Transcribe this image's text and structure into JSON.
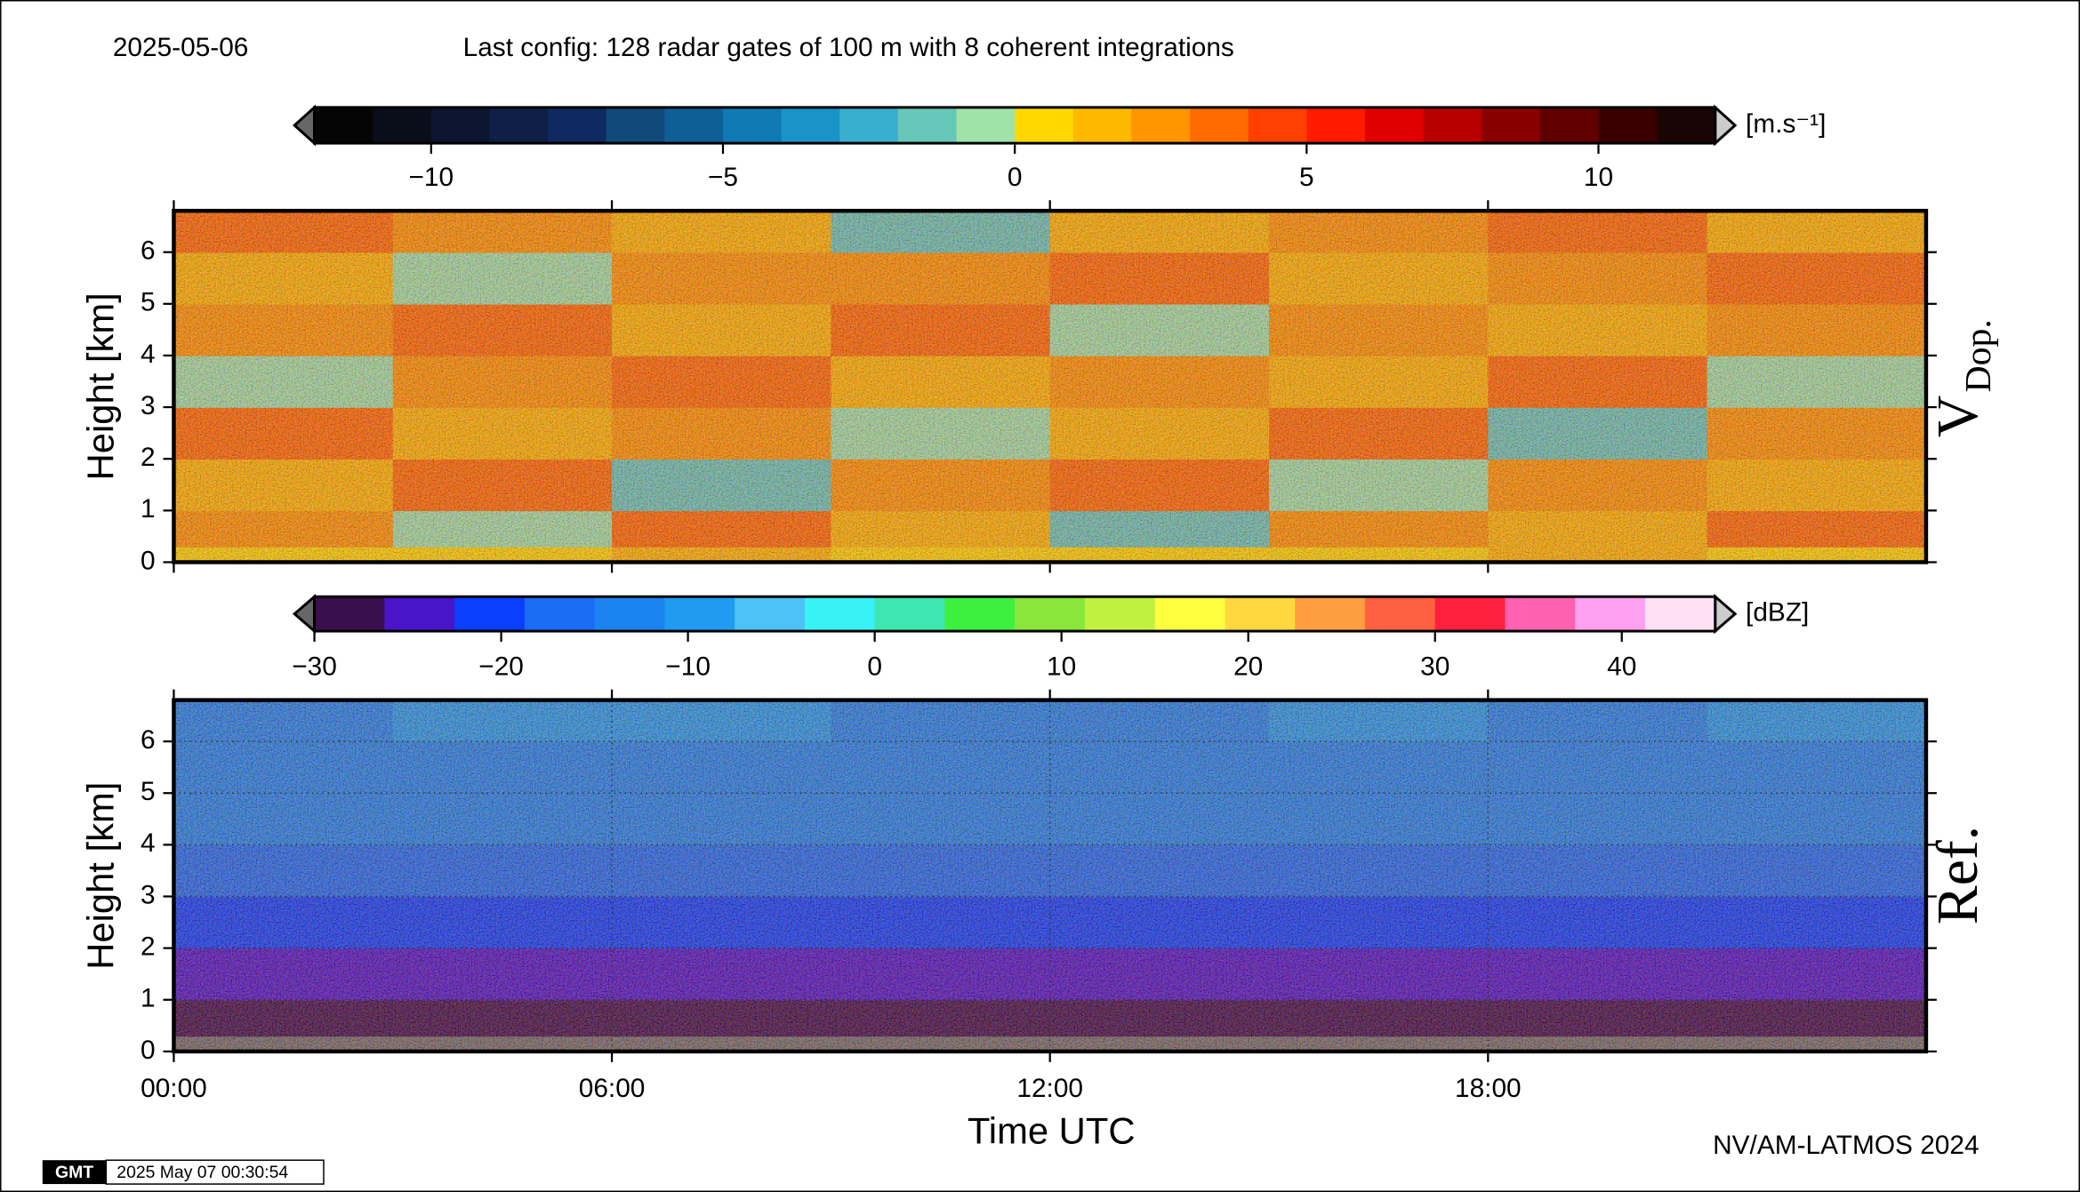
{
  "date": "2025-05-06",
  "config": "Last config: 128 radar gates of 100 m with 8 coherent integrations",
  "credit": "NV/AM-LATMOS 2024",
  "logo": "GMT",
  "timestamp": "2025 May 07 00:30:54",
  "chart_data": [
    {
      "type": "heatmap",
      "ylabel": "Height [km]",
      "panel_label": "V",
      "panel_label_sub": "Dop.",
      "grid": false,
      "xlim": [
        0,
        24
      ],
      "ylim": [
        0,
        6.8
      ],
      "yticks": [
        0,
        1,
        2,
        3,
        4,
        5,
        6
      ],
      "xedges": [
        0,
        3,
        6,
        9,
        12,
        15,
        18,
        21,
        24
      ],
      "yedges": [
        0,
        0.3,
        1,
        2,
        3,
        4,
        5,
        6,
        6.8
      ],
      "values": [
        [
          0,
          0,
          1,
          0,
          0,
          0,
          1,
          0
        ],
        [
          2,
          -1,
          3,
          1,
          -2,
          2,
          1,
          3
        ],
        [
          1,
          3,
          -2,
          2,
          3,
          -1,
          2,
          1
        ],
        [
          3,
          1,
          2,
          -1,
          1,
          3,
          -2,
          2
        ],
        [
          -1,
          2,
          3,
          1,
          2,
          1,
          3,
          -1
        ],
        [
          2,
          3,
          1,
          3,
          -1,
          2,
          1,
          2
        ],
        [
          1,
          -1,
          2,
          2,
          3,
          1,
          2,
          3
        ],
        [
          3,
          2,
          1,
          -2,
          1,
          2,
          3,
          1
        ]
      ],
      "colorbar": {
        "unit": "[m.s⁻¹]",
        "lim": [
          -12,
          12
        ],
        "ticks": [
          {
            "value": -10,
            "label": "−10"
          },
          {
            "value": -5,
            "label": "−5"
          },
          0,
          5,
          10
        ],
        "colors": [
          "#050505",
          "#0a0d1a",
          "#0c1630",
          "#0e1f48",
          "#0f2a60",
          "#104a7a",
          "#0d5f96",
          "#0f7ab3",
          "#1a93c8",
          "#3aaecd",
          "#67c7b8",
          "#9fe3a8",
          "#ffd800",
          "#ffb700",
          "#ff9500",
          "#ff6b00",
          "#ff4000",
          "#ff1a00",
          "#e00000",
          "#b80000",
          "#8a0000",
          "#600000",
          "#3a0000",
          "#1a0505"
        ]
      }
    },
    {
      "type": "heatmap",
      "ylabel": "Height [km]",
      "xlabel": "Time UTC",
      "panel_label": "Ref.",
      "grid": true,
      "nodata_color": "#6e6e6e",
      "xlim": [
        0,
        24
      ],
      "ylim": [
        0,
        6.8
      ],
      "yticks": [
        0,
        1,
        2,
        3,
        4,
        5,
        6
      ],
      "xticks": [
        {
          "value": 0,
          "label": "00:00"
        },
        {
          "value": 6,
          "label": "06:00"
        },
        {
          "value": 12,
          "label": "12:00"
        },
        {
          "value": 18,
          "label": "18:00"
        }
      ],
      "xedges": [
        0,
        3,
        6,
        9,
        12,
        15,
        18,
        21,
        24
      ],
      "yedges": [
        0,
        0.3,
        1,
        2,
        3,
        4,
        5,
        6,
        6.8
      ],
      "values": [
        [
          null,
          null,
          null,
          null,
          null,
          null,
          null,
          null
        ],
        [
          -29,
          -29,
          -29,
          -28,
          -28,
          -29,
          -28,
          -29
        ],
        [
          -26,
          -26,
          -26,
          -24,
          -23,
          -24,
          -24,
          -26
        ],
        [
          -22,
          -21,
          -20,
          -21,
          -21,
          -20,
          -20,
          -21
        ],
        [
          -18,
          -17,
          -16,
          -18,
          -18,
          -17,
          -17,
          -17
        ],
        [
          -15,
          -14,
          -13,
          -15,
          -15,
          -14,
          -15,
          -14
        ],
        [
          -13,
          -12,
          -12,
          -13,
          -13,
          -12,
          -13,
          -12
        ],
        [
          -12,
          -11,
          -11,
          -12,
          -12,
          -11,
          -12,
          -11
        ]
      ],
      "colorbar": {
        "unit": "[dBZ]",
        "lim": [
          -30,
          45
        ],
        "ticks": [
          {
            "value": -30,
            "label": "−30"
          },
          {
            "value": -20,
            "label": "−20"
          },
          {
            "value": -10,
            "label": "−10"
          },
          0,
          10,
          20,
          30,
          40
        ],
        "colors": [
          "#3b0e4d",
          "#4a14c8",
          "#0a3fff",
          "#1a6cf5",
          "#1b84f0",
          "#1f9bf2",
          "#4cc2f5",
          "#38f2f5",
          "#3ee6b0",
          "#3ef03e",
          "#8ae63a",
          "#c0f040",
          "#ffff40",
          "#ffd840",
          "#ff9e40",
          "#ff6040",
          "#ff2040",
          "#ff60b0",
          "#ffa0f0",
          "#ffe0f5"
        ]
      }
    }
  ]
}
